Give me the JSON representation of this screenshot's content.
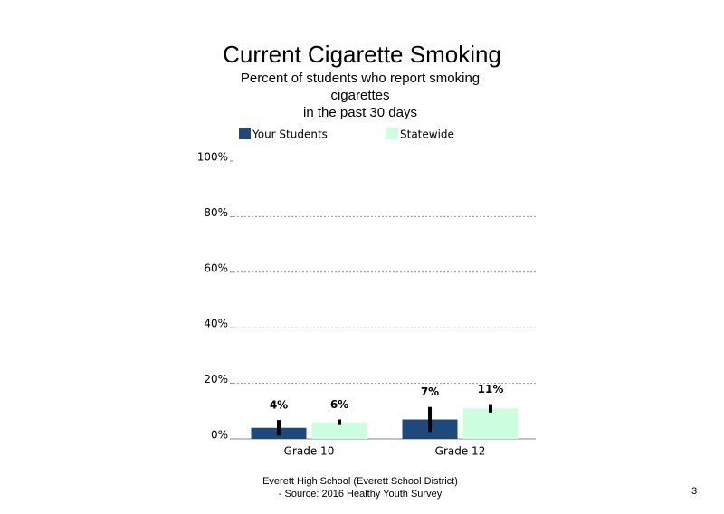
{
  "chart_data": {
    "type": "bar",
    "title": "Current Cigarette Smoking",
    "subtitle": [
      "Percent of students who report smoking",
      "cigarettes",
      "in the past 30 days"
    ],
    "categories": [
      "Grade 10",
      "Grade 12"
    ],
    "series": [
      {
        "name": "Your Students",
        "color": "#1f497d",
        "values": [
          4,
          7
        ],
        "value_labels": [
          "4%",
          "7%"
        ],
        "errors": [
          2.8,
          4.5
        ]
      },
      {
        "name": "Statewide",
        "color": "#ccffe0",
        "values": [
          6,
          11
        ],
        "value_labels": [
          "6%",
          "11%"
        ],
        "errors": [
          1,
          1.5
        ]
      }
    ],
    "ylim": [
      0,
      100
    ],
    "yticks": [
      {
        "value": 0,
        "label": "0%"
      },
      {
        "value": 20,
        "label": "20%"
      },
      {
        "value": 40,
        "label": "40%"
      },
      {
        "value": 60,
        "label": "60%"
      },
      {
        "value": 80,
        "label": "80%"
      },
      {
        "value": 100,
        "label": "100%"
      }
    ],
    "grid": true,
    "footer": [
      "Everett High School (Everett School District)",
      "- Source: 2016 Healthy Youth Survey"
    ],
    "page_number": "3"
  }
}
